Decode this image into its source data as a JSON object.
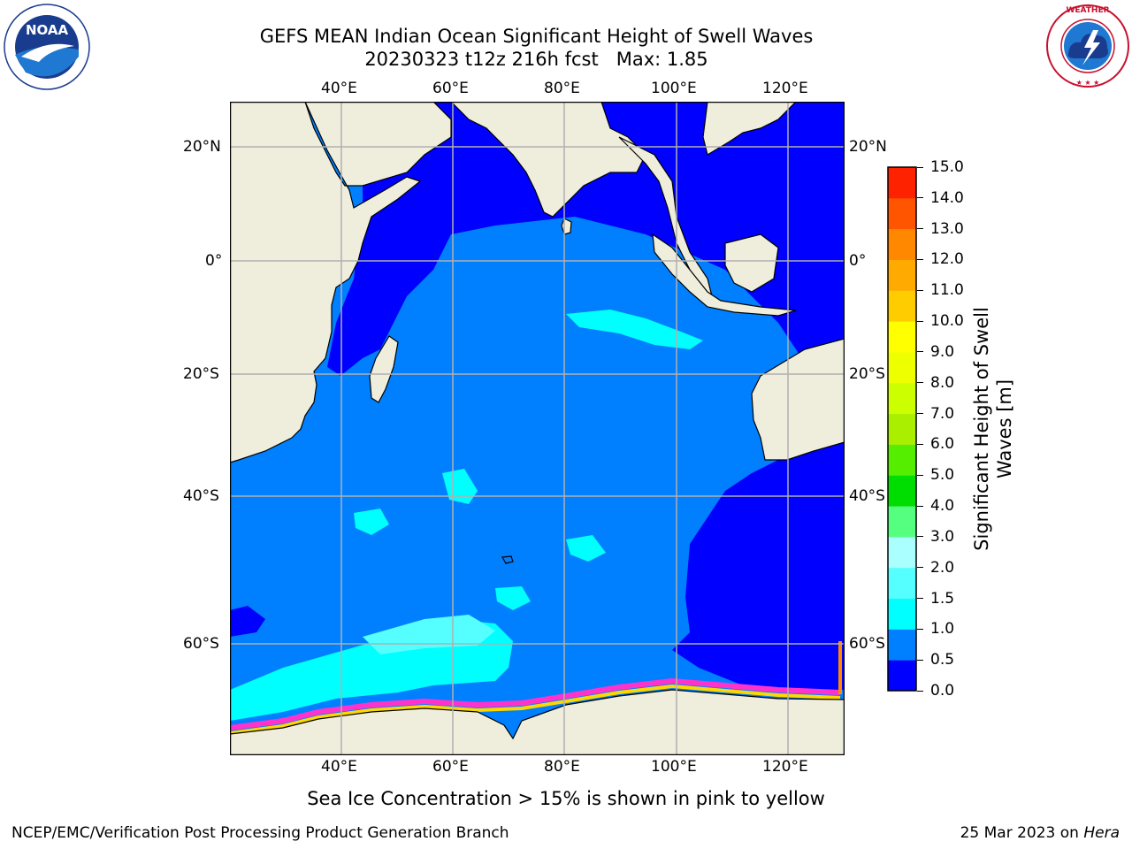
{
  "header": {
    "title_line1": "GEFS MEAN Indian Ocean Significant Height of Swell Waves",
    "title_line2": "20230323 t12z 216h fcst   Max: 1.85"
  },
  "logos": {
    "noaa": {
      "center_text": "NOAA",
      "ring_text": "NATIONAL OCEANIC AND ATMOSPHERIC ADMINISTRATION · U.S. DEPARTMENT OF COMMERCE"
    },
    "nws": {
      "ring_text": "NATIONAL WEATHER SERVICE"
    }
  },
  "map": {
    "lon_ticks_top": [
      "40°E",
      "60°E",
      "80°E",
      "100°E",
      "120°E"
    ],
    "lon_ticks_bottom": [
      "40°E",
      "60°E",
      "80°E",
      "100°E",
      "120°E"
    ],
    "lat_ticks_left": [
      "20°N",
      "0°",
      "20°S",
      "40°S",
      "60°S"
    ],
    "lat_ticks_right": [
      "20°N",
      "0°",
      "20°S",
      "40°S",
      "60°S"
    ],
    "land_color": "#efeddc",
    "ocean_colors": {
      "dark_blue": "#0000ff",
      "medium_blue": "#0080ff",
      "cyan": "#00ffff",
      "light_cyan": "#55ffff"
    },
    "ice_colors": [
      "#ff33cc",
      "#ff8800",
      "#ffd700",
      "#ffff66"
    ]
  },
  "colorbar": {
    "label": "Significant Height of Swell Waves [m]",
    "tick_labels": [
      "0.0",
      "0.5",
      "1.0",
      "1.5",
      "2.0",
      "3.0",
      "4.0",
      "5.0",
      "6.0",
      "7.0",
      "8.0",
      "9.0",
      "10.0",
      "11.0",
      "12.0",
      "13.0",
      "14.0",
      "15.0"
    ],
    "colors": [
      "#0000ff",
      "#0080ff",
      "#00ffff",
      "#55ffff",
      "#aaffff",
      "#55ff80",
      "#00dd00",
      "#55ee00",
      "#aaee00",
      "#ccff00",
      "#eeff00",
      "#ffff00",
      "#ffcc00",
      "#ffaa00",
      "#ff8800",
      "#ff5500",
      "#ff2200",
      "#ff0000"
    ]
  },
  "footer": {
    "caption": "Sea Ice Concentration > 15% is shown in pink to yellow",
    "credit_left": "NCEP/EMC/Verification Post Processing Product Generation Branch",
    "credit_right_prefix": "25 Mar 2023 on ",
    "credit_right_machine": "Hera"
  }
}
